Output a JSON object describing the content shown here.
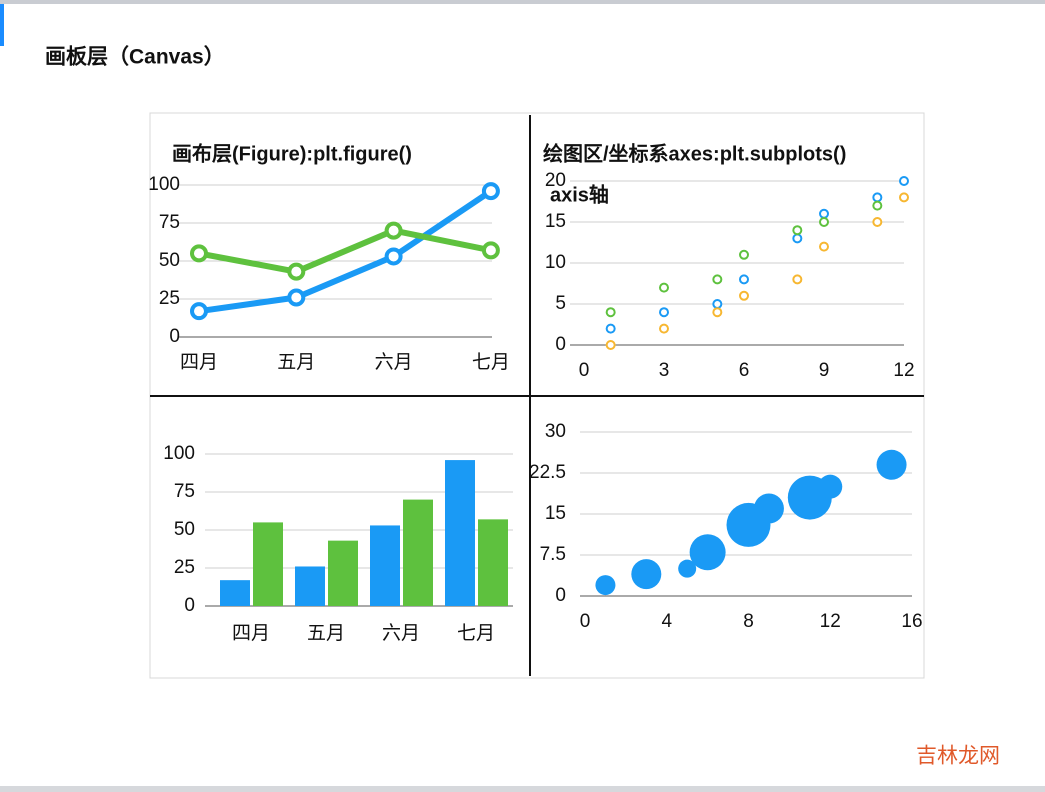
{
  "header": {
    "title": "画板层（Canvas）"
  },
  "watermark": "吉林龙网",
  "chart_data": [
    {
      "type": "line",
      "title": "画布层(Figure):plt.figure()",
      "categories": [
        "四月",
        "五月",
        "六月",
        "七月"
      ],
      "series": [
        {
          "color": "#1a9af5",
          "values": [
            17,
            26,
            53,
            96
          ]
        },
        {
          "color": "#5ec13e",
          "values": [
            55,
            43,
            70,
            57
          ]
        }
      ],
      "ylim": [
        0,
        100
      ],
      "yticks": [
        0,
        25,
        50,
        75,
        100
      ],
      "grid": true
    },
    {
      "type": "scatter",
      "title": "绘图区/坐标系axes:plt.subplots()",
      "annotation": "axis轴",
      "series": [
        {
          "color": "#1a9af5",
          "x": [
            1,
            3,
            5,
            6,
            8,
            9,
            11,
            12
          ],
          "values": [
            2,
            4,
            5,
            8,
            13,
            16,
            18,
            20
          ]
        },
        {
          "color": "#5ec13e",
          "x": [
            1,
            3,
            5,
            6,
            8,
            9,
            11
          ],
          "values": [
            4,
            7,
            8,
            11,
            14,
            15,
            17
          ]
        },
        {
          "color": "#f7b731",
          "x": [
            1,
            3,
            5,
            6,
            8,
            9,
            11,
            12
          ],
          "values": [
            0,
            2,
            4,
            6,
            8,
            12,
            15,
            18
          ]
        }
      ],
      "xlim": [
        0,
        12
      ],
      "xticks": [
        0,
        3,
        6,
        9,
        12
      ],
      "ylim": [
        0,
        20
      ],
      "yticks": [
        0,
        5,
        10,
        15,
        20
      ],
      "grid": true
    },
    {
      "type": "bar",
      "categories": [
        "四月",
        "五月",
        "六月",
        "七月"
      ],
      "series": [
        {
          "color": "#1a9af5",
          "values": [
            17,
            26,
            53,
            96
          ]
        },
        {
          "color": "#5ec13e",
          "values": [
            55,
            43,
            70,
            57
          ]
        }
      ],
      "ylim": [
        0,
        100
      ],
      "yticks": [
        0,
        25,
        50,
        75,
        100
      ],
      "grid": true
    },
    {
      "type": "bubble",
      "series": [
        {
          "color": "#1a9af5",
          "x": [
            1,
            3,
            5,
            6,
            8,
            9,
            11,
            12,
            15
          ],
          "values": [
            2,
            4,
            5,
            8,
            13,
            16,
            18,
            20,
            24
          ],
          "sizes": [
            10,
            15,
            9,
            18,
            22,
            15,
            22,
            12,
            15
          ]
        }
      ],
      "xlim": [
        0,
        16
      ],
      "xticks": [
        0,
        4,
        8,
        12,
        16
      ],
      "ylim": [
        0,
        30
      ],
      "yticks": [
        0,
        7.5,
        15,
        22.5,
        30
      ],
      "grid": true
    }
  ]
}
